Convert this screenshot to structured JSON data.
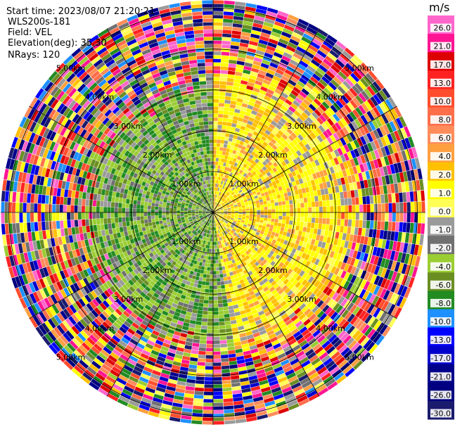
{
  "info": {
    "start_time": "Start time: 2023/08/07 21:20:21",
    "instrument": "WLS200s-181",
    "field": "Field: VEL",
    "elevation": "Elevation(deg): 35.30",
    "nrays": "NRays: 120"
  },
  "colorbar": {
    "unit": "m/s",
    "ticks": [
      "26.0",
      "21.0",
      "17.0",
      "13.0",
      "10.0",
      "8.0",
      "6.0",
      "4.0",
      "2.0",
      "1.0",
      "0.0",
      "-1.0",
      "-2.0",
      "-4.0",
      "-6.0",
      "-8.0",
      "-10.0",
      "-13.0",
      "-17.0",
      "-21.0",
      "-26.0",
      "-30.0"
    ],
    "colors": [
      "#ff66cc",
      "#ff1493",
      "#dd0000",
      "#ff2222",
      "#ff4d2e",
      "#ff6e4a",
      "#ff8c5a",
      "#ffa040",
      "#ffc000",
      "#ffff00",
      "#ffff55",
      "#9a9a9a",
      "#707070",
      "#9acd32",
      "#6b8e23",
      "#228b22",
      "#1e90ff",
      "#0000ff",
      "#0000cc",
      "#00008b",
      "#000080",
      "#1a1a6e"
    ]
  },
  "chart_data": {
    "type": "heatmap",
    "projection": "polar-ppi",
    "field": "VEL",
    "nrays": 120,
    "range_rings_km": [
      1.0,
      2.0,
      3.0,
      4.0,
      5.0
    ],
    "ring_labels": [
      "1.00km",
      "2.00km",
      "3.00km",
      "4.00km",
      "5.00km"
    ],
    "max_range_km": 5.2,
    "spokes_deg": [
      0,
      30,
      60,
      90,
      120,
      150,
      180,
      210,
      240,
      270,
      300,
      330
    ],
    "value_range": [
      -30,
      30
    ],
    "sectors": [
      {
        "azimuth_from_deg": 0,
        "azimuth_to_deg": 170,
        "inner_km": 0.0,
        "outer_km": 3.3,
        "dominant_color": "#ffff00",
        "approx_velocity": 2.0
      },
      {
        "azimuth_from_deg": 170,
        "azimuth_to_deg": 360,
        "inner_km": 0.0,
        "outer_km": 3.0,
        "dominant_color": "#9acd32",
        "approx_velocity": -2.0
      },
      {
        "azimuth_from_deg": 0,
        "azimuth_to_deg": 360,
        "inner_km": 3.3,
        "outer_km": 5.2,
        "dominant_color": "mixed",
        "approx_velocity": null
      }
    ]
  }
}
